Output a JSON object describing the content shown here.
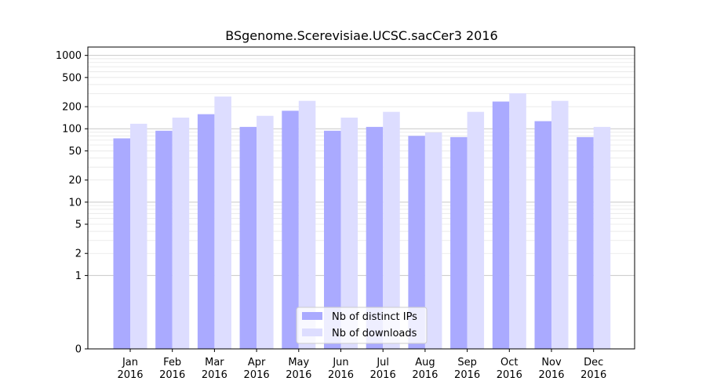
{
  "chart_data": {
    "type": "bar",
    "title": "BSgenome.Scerevisiae.UCSC.sacCer3 2016",
    "xlabel": "",
    "ylabel": "",
    "yscale": "symlog",
    "ylim": [
      0,
      1300
    ],
    "yticks": [
      0,
      1,
      2,
      5,
      10,
      20,
      50,
      100,
      200,
      500,
      1000
    ],
    "categories": [
      [
        "Jan",
        "2016"
      ],
      [
        "Feb",
        "2016"
      ],
      [
        "Mar",
        "2016"
      ],
      [
        "Apr",
        "2016"
      ],
      [
        "May",
        "2016"
      ],
      [
        "Jun",
        "2016"
      ],
      [
        "Jul",
        "2016"
      ],
      [
        "Aug",
        "2016"
      ],
      [
        "Sep",
        "2016"
      ],
      [
        "Oct",
        "2016"
      ],
      [
        "Nov",
        "2016"
      ],
      [
        "Dec",
        "2016"
      ]
    ],
    "series": [
      {
        "name": "Nb of distinct IPs",
        "color": "#aaaaff",
        "values": [
          74,
          94,
          158,
          106,
          176,
          94,
          106,
          80,
          77,
          235,
          127,
          77
        ]
      },
      {
        "name": "Nb of downloads",
        "color": "#ddddff",
        "values": [
          117,
          142,
          275,
          150,
          240,
          142,
          170,
          89,
          170,
          305,
          240,
          106
        ]
      }
    ],
    "grid": true,
    "legend_position": "bottom-center"
  }
}
